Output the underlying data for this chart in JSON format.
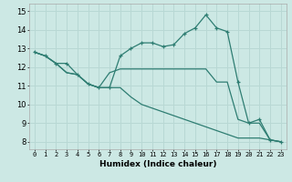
{
  "xlabel": "Humidex (Indice chaleur)",
  "background_color": "#cce8e4",
  "grid_color": "#b8d8d4",
  "line_color": "#2e7d72",
  "xlim": [
    -0.5,
    23.5
  ],
  "ylim": [
    7.6,
    15.4
  ],
  "yticks": [
    8,
    9,
    10,
    11,
    12,
    13,
    14,
    15
  ],
  "xtick_labels": [
    "0",
    "1",
    "2",
    "3",
    "4",
    "5",
    "6",
    "7",
    "8",
    "9",
    "10",
    "11",
    "12",
    "13",
    "14",
    "15",
    "16",
    "17",
    "18",
    "19",
    "20",
    "21",
    "22",
    "23"
  ],
  "series": [
    {
      "y": [
        12.8,
        12.6,
        12.2,
        12.2,
        11.6,
        11.1,
        10.9,
        10.9,
        12.6,
        13.0,
        13.3,
        13.3,
        13.1,
        13.2,
        13.8,
        14.1,
        14.8,
        14.1,
        13.9,
        11.2,
        9.0,
        9.2,
        8.1,
        8.0
      ],
      "marker": true
    },
    {
      "y": [
        12.8,
        12.6,
        12.2,
        11.7,
        11.6,
        11.1,
        10.9,
        11.7,
        11.9,
        11.9,
        11.9,
        11.9,
        11.9,
        11.9,
        11.9,
        11.9,
        11.9,
        11.2,
        11.2,
        9.2,
        9.0,
        9.0,
        8.1,
        8.0
      ],
      "marker": false
    },
    {
      "y": [
        12.8,
        12.6,
        12.2,
        11.7,
        11.6,
        11.1,
        10.9,
        10.9,
        10.9,
        10.4,
        10.0,
        9.8,
        9.6,
        9.4,
        9.2,
        9.0,
        8.8,
        8.6,
        8.4,
        8.2,
        8.2,
        8.2,
        8.1,
        8.0
      ],
      "marker": false
    }
  ]
}
